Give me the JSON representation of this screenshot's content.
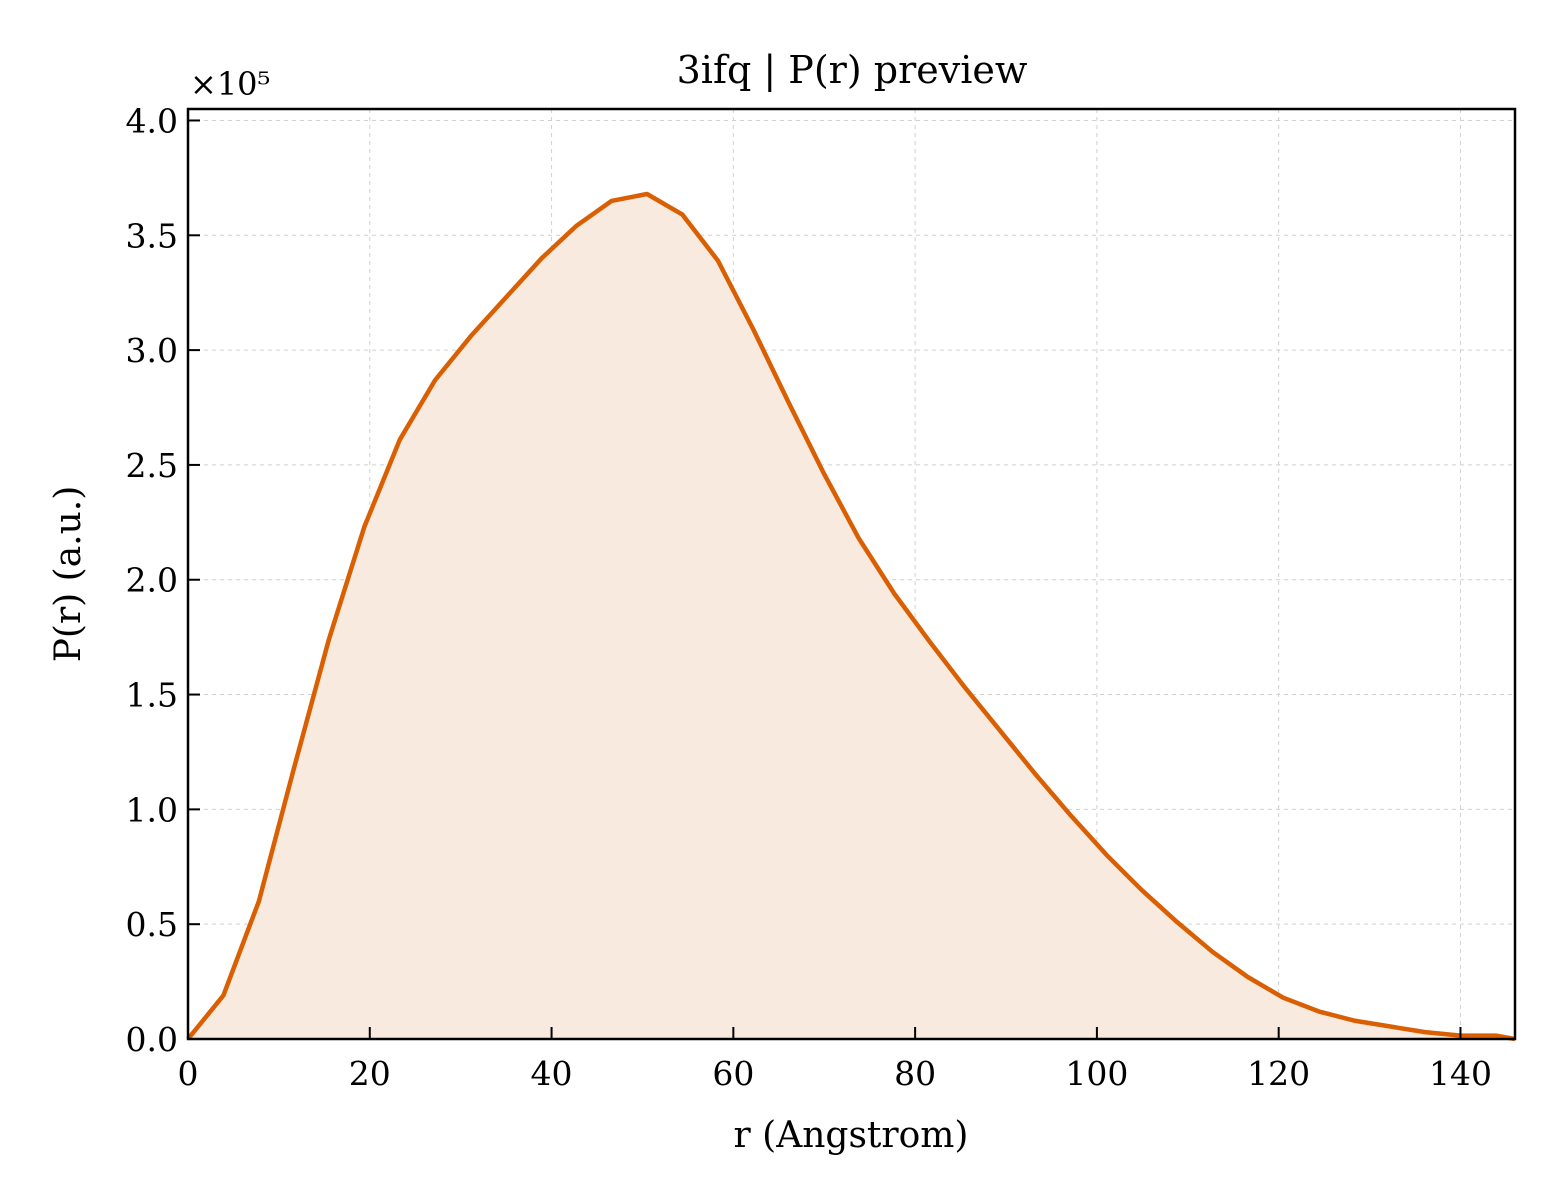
{
  "chart_data": {
    "type": "area",
    "title": "3ifq | P(r) preview",
    "xlabel": "r (Angstrom)",
    "ylabel": "P(r) (a.u.)",
    "y_scale_label": "×10⁵",
    "xlim": [
      0,
      146
    ],
    "ylim": [
      0,
      4.05
    ],
    "y_multiplier": 100000,
    "x_ticks": [
      0,
      20,
      40,
      60,
      80,
      100,
      120,
      140
    ],
    "x_tick_labels": [
      "0",
      "20",
      "40",
      "60",
      "80",
      "100",
      "120",
      "140"
    ],
    "y_ticks": [
      0.0,
      0.5,
      1.0,
      1.5,
      2.0,
      2.5,
      3.0,
      3.5,
      4.0
    ],
    "y_tick_labels": [
      "0.0",
      "0.5",
      "1.0",
      "1.5",
      "2.0",
      "2.5",
      "3.0",
      "3.5",
      "4.0"
    ],
    "grid": true,
    "colors": {
      "line": "#d95f02",
      "fill": "#f9eadf",
      "grid": "#d0d0d0",
      "axes": "#000000"
    },
    "series": [
      {
        "x": [
          0,
          3.9,
          7.8,
          11.6,
          15.5,
          19.4,
          23.3,
          27.2,
          31.1,
          35.0,
          38.9,
          42.7,
          46.6,
          50.5,
          54.4,
          58.3,
          62.2,
          66.1,
          70.0,
          73.8,
          77.7,
          81.6,
          85.5,
          89.4,
          93.3,
          97.2,
          101.1,
          104.9,
          108.8,
          112.7,
          116.6,
          120.5,
          124.4,
          128.3,
          132.2,
          136.1,
          140.0,
          143.9,
          146.0
        ],
        "y": [
          0.0,
          0.19,
          0.6,
          1.17,
          1.74,
          2.23,
          2.61,
          2.87,
          3.06,
          3.23,
          3.4,
          3.54,
          3.65,
          3.68,
          3.59,
          3.39,
          3.09,
          2.77,
          2.46,
          2.18,
          1.94,
          1.73,
          1.53,
          1.34,
          1.15,
          0.97,
          0.8,
          0.65,
          0.51,
          0.38,
          0.27,
          0.18,
          0.12,
          0.08,
          0.055,
          0.03,
          0.015,
          0.015,
          0.0
        ]
      }
    ]
  }
}
